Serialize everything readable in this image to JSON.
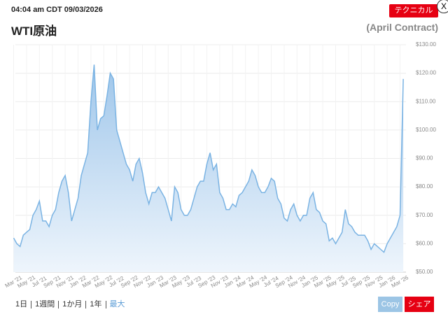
{
  "header": {
    "timestamp": "04:04 am CDT 09/03/2026",
    "title": "WTI原油",
    "contract": "(April Contract)",
    "technical_button": "テクニカル",
    "close_button": "X"
  },
  "footer": {
    "ranges": [
      "1日",
      "1週間",
      "1か月",
      "1年",
      "最大"
    ],
    "copy_button": "Copy",
    "share_button": "シェア"
  },
  "chart_data": {
    "type": "area",
    "color": "#7ab3e3",
    "categories": [
      "Mar '21",
      null,
      null,
      null,
      "May '21",
      null,
      null,
      null,
      "Jul '21",
      null,
      null,
      null,
      "Sep '21",
      null,
      null,
      null,
      "Nov '21",
      null,
      null,
      null,
      "Jan '22",
      null,
      null,
      null,
      "Mar '22",
      null,
      null,
      null,
      "May '22",
      null,
      null,
      null,
      "Jul '22",
      null,
      null,
      null,
      "Sep '22",
      null,
      null,
      null,
      "Nov '22",
      null,
      null,
      null,
      "Jan '23",
      null,
      null,
      null,
      "Mar '23",
      null,
      null,
      null,
      "May '23",
      null,
      null,
      null,
      "Jul '23",
      null,
      null,
      null,
      "Sep '23",
      null,
      null,
      null,
      "Nov '23",
      null,
      null,
      null,
      "Jan '24",
      null,
      null,
      null,
      "Mar '24",
      null,
      null,
      null,
      "May '24",
      null,
      null,
      null,
      "Jul '24",
      null,
      null,
      null,
      "Sep '24",
      null,
      null,
      null,
      "Nov '24",
      null,
      null,
      null,
      "Jan '25",
      null,
      null,
      null,
      "Mar '25",
      null,
      null,
      null,
      "May '25",
      null,
      null,
      null,
      "Jul '25",
      null,
      null,
      null,
      "Sep '25",
      null,
      null,
      null,
      "Nov '25",
      null,
      null,
      null,
      "Jan '26",
      null,
      null,
      null,
      "Mar '26",
      null
    ],
    "values": [
      62,
      60,
      59,
      63,
      64,
      65,
      70,
      72,
      75,
      68,
      68,
      66,
      70,
      72,
      78,
      82,
      84,
      78,
      68,
      72,
      76,
      84,
      88,
      92,
      110,
      123,
      100,
      104,
      105,
      112,
      120,
      118,
      100,
      96,
      92,
      88,
      86,
      82,
      88,
      90,
      85,
      78,
      74,
      78,
      78,
      80,
      78,
      76,
      72,
      68,
      80,
      78,
      72,
      70,
      70,
      72,
      76,
      80,
      82,
      82,
      88,
      92,
      86,
      88,
      78,
      76,
      72,
      72,
      74,
      73,
      77,
      78,
      80,
      82,
      86,
      84,
      80,
      78,
      78,
      80,
      83,
      82,
      76,
      74,
      69,
      68,
      72,
      74,
      70,
      68,
      70,
      70,
      76,
      78,
      72,
      71,
      68,
      67,
      61,
      62,
      60,
      62,
      64,
      72,
      67,
      66,
      64,
      63,
      63,
      63,
      61,
      58,
      60,
      59,
      58,
      57,
      60,
      62,
      64,
      66,
      70,
      118
    ],
    "ylim": [
      50,
      130
    ],
    "yticks": [
      {
        "value": 50,
        "label": "$50.00"
      },
      {
        "value": 60,
        "label": "$60.00"
      },
      {
        "value": 70,
        "label": "$70.00"
      },
      {
        "value": 80,
        "label": "$80.00"
      },
      {
        "value": 90,
        "label": "$90.00"
      },
      {
        "value": 100,
        "label": "$100.00"
      },
      {
        "value": 110,
        "label": "$110.00"
      },
      {
        "value": 120,
        "label": "$120.00"
      },
      {
        "value": 130,
        "label": "$130.00"
      }
    ],
    "grid": true
  }
}
